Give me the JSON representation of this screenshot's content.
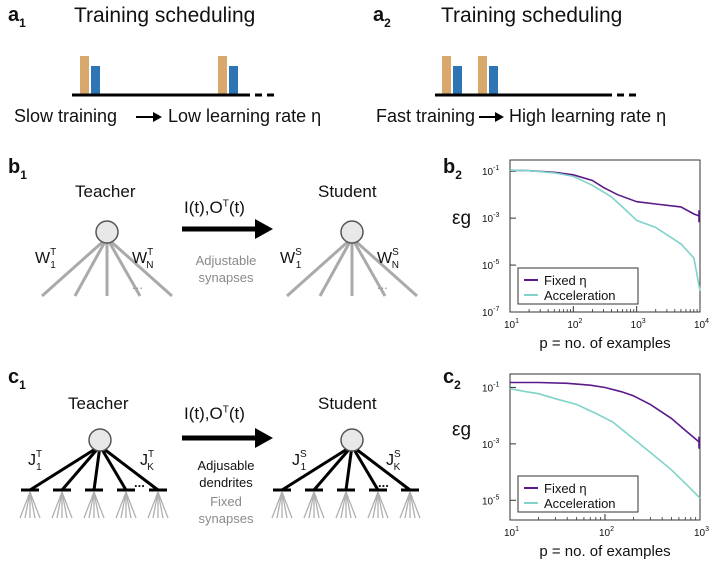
{
  "panels": {
    "a1": {
      "letter": "a",
      "sub": "1",
      "title": "Training scheduling",
      "left_text": "Slow training",
      "right_text": "Low learning rate η"
    },
    "a2": {
      "letter": "a",
      "sub": "2",
      "title": "Training scheduling",
      "left_text": "Fast training",
      "right_text": "High learning rate η"
    },
    "b1": {
      "letter": "b",
      "sub": "1",
      "teacher": "Teacher",
      "student": "Student",
      "signal": "I(t),O",
      "signal_sup": "T",
      "signal_end": "(t)",
      "left_w": "W",
      "left_w_sup": "T",
      "left_w_sub1": "1",
      "left_w_subN": "N",
      "right_w": "W",
      "right_w_sup": "S",
      "right_w_sub1": "1",
      "right_w_subN": "N",
      "note_line1": "Adjustable",
      "note_line2": "synapses",
      "dots": "..."
    },
    "b2": {
      "letter": "b",
      "sub": "2"
    },
    "c1": {
      "letter": "c",
      "sub": "1",
      "teacher": "Teacher",
      "student": "Student",
      "signal": "I(t),O",
      "signal_sup": "T",
      "signal_end": "(t)",
      "left_j": "J",
      "left_j_sup": "T",
      "left_j_sub1": "1",
      "left_j_subK": "K",
      "right_j": "J",
      "right_j_sup": "S",
      "right_j_sub1": "1",
      "right_j_subK": "K",
      "note_line1": "Adjusable",
      "note_line2": "dendrites",
      "note_line3": "Fixed",
      "note_line4": "synapses",
      "dots": "..."
    },
    "c2": {
      "letter": "c",
      "sub": "2"
    }
  },
  "colors": {
    "bar_orange": "#d9a86c",
    "bar_blue": "#2e75b6",
    "fixed": "#5b1a8a",
    "accel": "#7fd3c8",
    "gray": "#9a9a9a"
  },
  "chart_data": [
    {
      "type": "line",
      "panel": "b2",
      "xlabel": "p = no. of examples",
      "ylabel": "εg",
      "x_scale": "log",
      "y_scale": "log",
      "xlim": [
        10,
        10000
      ],
      "ylim": [
        1e-07,
        0.3
      ],
      "xticks": [
        {
          "v": 10,
          "label": "10",
          "sup": "1"
        },
        {
          "v": 100,
          "label": "10",
          "sup": "2"
        },
        {
          "v": 1000,
          "label": "10",
          "sup": "3"
        },
        {
          "v": 10000,
          "label": "10",
          "sup": "4"
        }
      ],
      "yticks": [
        {
          "v": 0.1,
          "label": "10",
          "sup": "-1"
        },
        {
          "v": 0.001,
          "label": "10",
          "sup": "-3"
        },
        {
          "v": 1e-05,
          "label": "10",
          "sup": "-5"
        },
        {
          "v": 1e-07,
          "label": "10",
          "sup": "-7"
        }
      ],
      "legend": "bottom-left",
      "series": [
        {
          "name": "Fixed η",
          "color": "#5b1a8a",
          "x": [
            10,
            20,
            50,
            100,
            200,
            300,
            500,
            1000,
            2000,
            5000,
            8000,
            10000
          ],
          "y": [
            0.11,
            0.105,
            0.09,
            0.07,
            0.04,
            0.02,
            0.01,
            0.005,
            0.004,
            0.003,
            0.0015,
            0.0012
          ]
        },
        {
          "name": "Acceleration",
          "color": "#7fd3c8",
          "x": [
            10,
            20,
            50,
            100,
            200,
            400,
            700,
            1000,
            2000,
            5000,
            8000,
            10000
          ],
          "y": [
            0.11,
            0.105,
            0.085,
            0.06,
            0.025,
            0.008,
            0.002,
            0.0008,
            0.0004,
            8e-05,
            2e-05,
            8e-07
          ]
        }
      ]
    },
    {
      "type": "line",
      "panel": "c2",
      "xlabel": "p = no. of examples",
      "ylabel": "εg",
      "x_scale": "log",
      "y_scale": "log",
      "xlim": [
        10,
        1000
      ],
      "ylim": [
        2e-06,
        0.3
      ],
      "xticks": [
        {
          "v": 10,
          "label": "10",
          "sup": "1"
        },
        {
          "v": 100,
          "label": "10",
          "sup": "2"
        },
        {
          "v": 1000,
          "label": "10",
          "sup": "3"
        }
      ],
      "yticks": [
        {
          "v": 0.1,
          "label": "10",
          "sup": "-1"
        },
        {
          "v": 0.001,
          "label": "10",
          "sup": "-3"
        },
        {
          "v": 1e-05,
          "label": "10",
          "sup": "-5"
        }
      ],
      "legend": "bottom-left",
      "series": [
        {
          "name": "Fixed η",
          "color": "#5b1a8a",
          "x": [
            10,
            20,
            40,
            70,
            100,
            150,
            200,
            300,
            500,
            700,
            1000
          ],
          "y": [
            0.15,
            0.15,
            0.14,
            0.12,
            0.1,
            0.07,
            0.05,
            0.025,
            0.008,
            0.003,
            0.0011
          ]
        },
        {
          "name": "Acceleration",
          "color": "#7fd3c8",
          "x": [
            10,
            15,
            20,
            30,
            50,
            80,
            120,
            200,
            300,
            500,
            700,
            1000
          ],
          "y": [
            0.09,
            0.07,
            0.06,
            0.04,
            0.025,
            0.012,
            0.006,
            0.0015,
            0.0005,
            0.00012,
            4e-05,
            1.2e-05
          ]
        }
      ]
    }
  ]
}
